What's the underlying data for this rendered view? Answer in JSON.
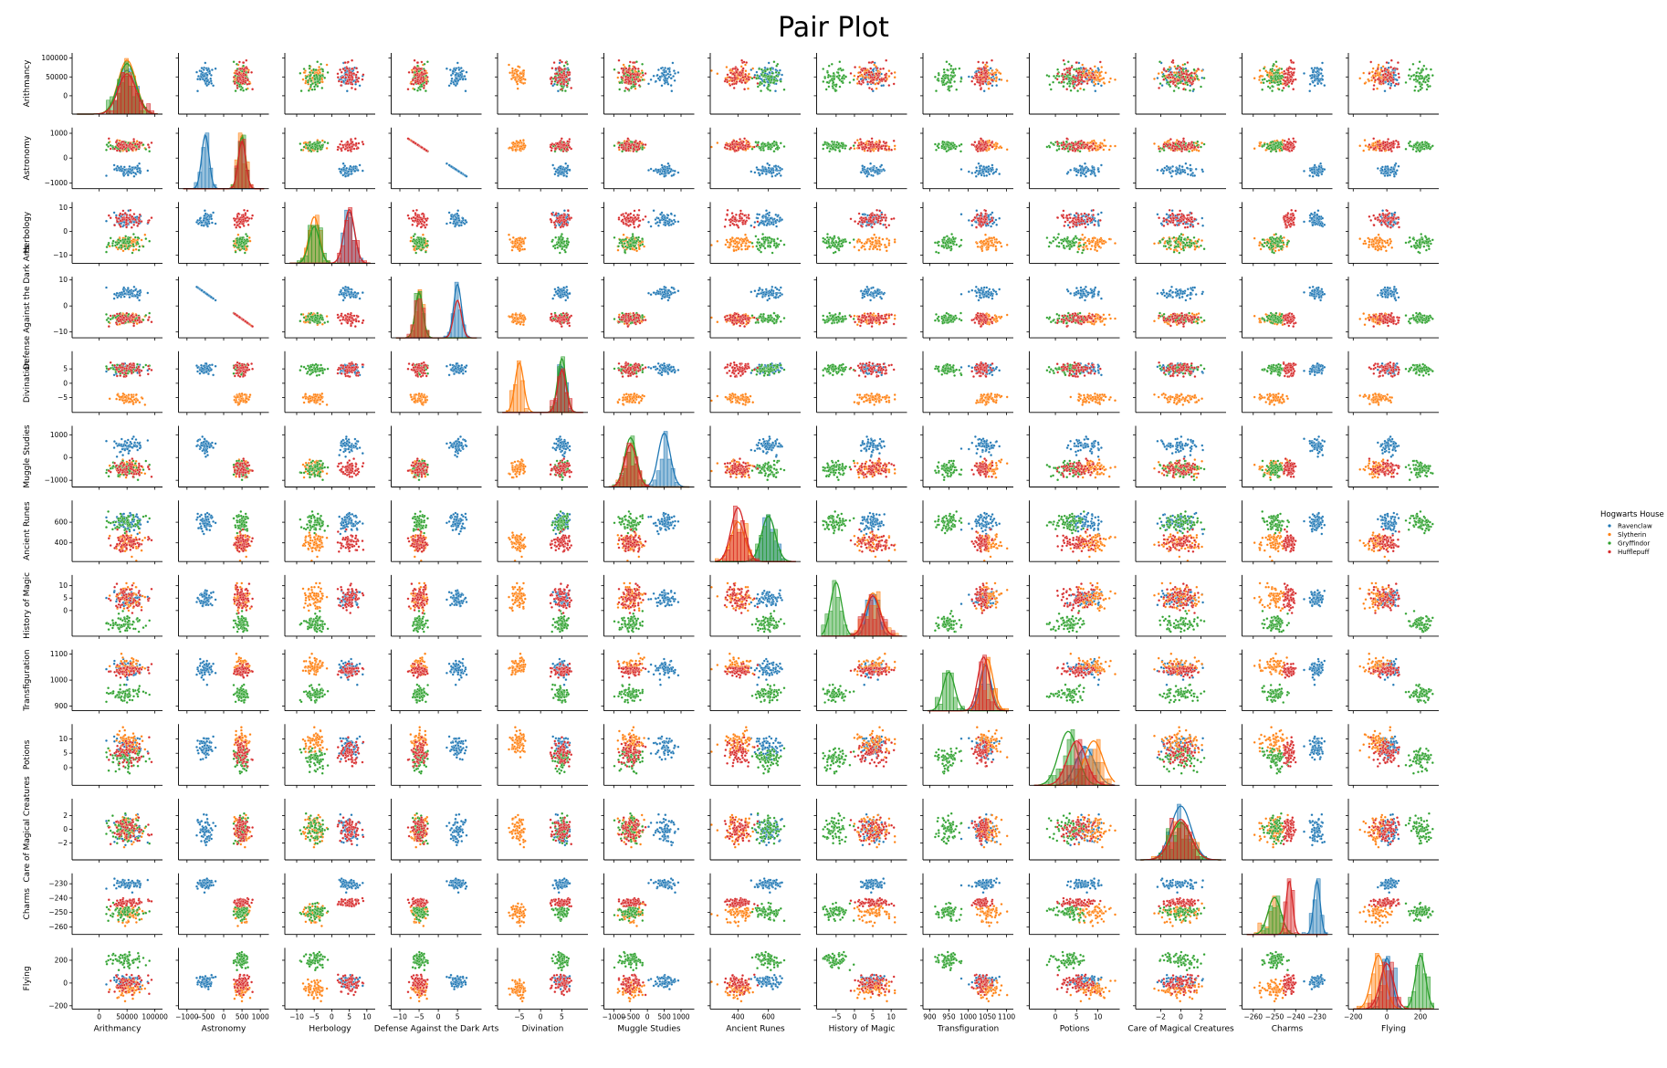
{
  "chart_data": {
    "type": "scatter",
    "title": "Pair Plot",
    "hue_title": "Hogwarts House",
    "diagonal": "histogram with kde",
    "grid": false,
    "legend_position": "right",
    "variables": [
      {
        "name": "Arithmancy",
        "range": [
          -40000,
          105000
        ],
        "ticks": [
          0,
          50000,
          100000
        ],
        "x_tick_labels": [
          "0",
          "50000",
          "100000"
        ],
        "y_ticks": [
          0,
          50000,
          100000
        ],
        "y_tick_labels": [
          "0",
          "50000",
          "100000"
        ]
      },
      {
        "name": "Astronomy",
        "range": [
          -1100,
          1100
        ],
        "ticks": [
          -1000,
          -500,
          0,
          500,
          1000
        ],
        "x_tick_labels": [
          "−1000",
          "−500",
          "0",
          "500",
          "1000"
        ],
        "y_ticks": [
          -1000,
          0,
          1000
        ],
        "y_tick_labels": [
          "−1000",
          "0",
          "1000"
        ]
      },
      {
        "name": "Herbology",
        "range": [
          -12,
          11
        ],
        "ticks": [
          -10,
          -5,
          0,
          5,
          10
        ],
        "x_tick_labels": [
          "−10",
          "−5",
          "0",
          "5",
          "10"
        ],
        "y_ticks": [
          -10,
          0,
          10
        ],
        "y_tick_labels": [
          "−10",
          "0",
          "10"
        ]
      },
      {
        "name": "Defense Against the Dark Arts",
        "range": [
          -11,
          10
        ],
        "ticks": [
          -10,
          -5,
          0,
          5
        ],
        "x_tick_labels": [
          "−10",
          "−5",
          "0",
          "5"
        ],
        "y_ticks": [
          -10,
          0,
          10
        ],
        "y_tick_labels": [
          "−10",
          "0",
          "10"
        ]
      },
      {
        "name": "Divination",
        "range": [
          -9,
          10
        ],
        "ticks": [
          -5,
          0,
          5
        ],
        "x_tick_labels": [
          "−5",
          "0",
          "5"
        ],
        "y_ticks": [
          -5,
          0,
          5
        ],
        "y_tick_labels": [
          "−5",
          "0",
          "5"
        ]
      },
      {
        "name": "Muggle Studies",
        "range": [
          -1150,
          1250
        ],
        "ticks": [
          -1000,
          -500,
          0,
          500,
          1000
        ],
        "x_tick_labels": [
          "−1000",
          "−500",
          "0",
          "500",
          "1000"
        ],
        "y_ticks": [
          -1000,
          0,
          1000
        ],
        "y_tick_labels": [
          "−1000",
          "0",
          "1000"
        ]
      },
      {
        "name": "Ancient Runes",
        "range": [
          250,
          780
        ],
        "ticks": [
          400,
          600
        ],
        "x_tick_labels": [
          "400",
          "600"
        ],
        "y_ticks": [
          400,
          600
        ],
        "y_tick_labels": [
          "400",
          "600"
        ]
      },
      {
        "name": "History of Magic",
        "range": [
          -9,
          13
        ],
        "ticks": [
          -5,
          0,
          5,
          10
        ],
        "x_tick_labels": [
          "−5",
          "0",
          "5",
          "10"
        ],
        "y_ticks": [
          0,
          5,
          10
        ],
        "y_tick_labels": [
          "0",
          "5",
          "10"
        ]
      },
      {
        "name": "Transfiguration",
        "range": [
          895,
          1105
        ],
        "ticks": [
          900,
          950,
          1000,
          1050,
          1100
        ],
        "x_tick_labels": [
          "900",
          "950",
          "1000",
          "1050",
          "1100"
        ],
        "y_ticks": [
          900,
          1000,
          1100
        ],
        "y_tick_labels": [
          "900",
          "1000",
          "1100"
        ]
      },
      {
        "name": "Potions",
        "range": [
          -5,
          14
        ],
        "ticks": [
          0,
          5,
          10
        ],
        "x_tick_labels": [
          "0",
          "5",
          "10"
        ],
        "y_ticks": [
          0,
          5,
          10
        ],
        "y_tick_labels": [
          "0",
          "5",
          "10"
        ]
      },
      {
        "name": "Care of Magical Creatures",
        "range": [
          -4,
          4
        ],
        "ticks": [
          -2,
          0,
          2
        ],
        "x_tick_labels": [
          "−2",
          "0",
          "2"
        ],
        "y_ticks": [
          -2,
          0,
          2
        ],
        "y_tick_labels": [
          "−2",
          "0",
          "2"
        ]
      },
      {
        "name": "Charms",
        "range": [
          -263,
          -225
        ],
        "ticks": [
          -260,
          -250,
          -240,
          -230
        ],
        "x_tick_labels": [
          "−260",
          "−250",
          "−240",
          "−230"
        ],
        "y_ticks": [
          -260,
          -250,
          -240,
          -230
        ],
        "y_tick_labels": [
          "−260",
          "−250",
          "−240",
          "−230"
        ]
      },
      {
        "name": "Flying",
        "range": [
          -200,
          280
        ],
        "ticks": [
          -200,
          0,
          200
        ],
        "x_tick_labels": [
          "−200",
          "0",
          "200"
        ],
        "y_ticks": [
          -200,
          0,
          200
        ],
        "y_tick_labels": [
          "−200",
          "0",
          "200"
        ]
      }
    ],
    "series": [
      {
        "name": "Ravenclaw",
        "color": "#1f77b4",
        "means": [
          50000,
          -500,
          5,
          5,
          5,
          500,
          600,
          5,
          1045,
          7,
          0,
          -230,
          0
        ],
        "sds": [
          16000,
          100,
          1.5,
          1,
          1,
          180,
          45,
          1.5,
          15,
          2.2,
          1,
          1.5,
          30
        ]
      },
      {
        "name": "Slytherin",
        "color": "#ff7f0e",
        "means": [
          50000,
          500,
          -5,
          -5,
          -5,
          -500,
          400,
          5,
          1050,
          9,
          0,
          -250,
          -50
        ],
        "sds": [
          16000,
          100,
          1.5,
          1,
          1,
          180,
          45,
          2,
          15,
          2.2,
          1,
          3,
          40
        ]
      },
      {
        "name": "Gryffindor",
        "color": "#2ca02c",
        "means": [
          50000,
          500,
          -5,
          -5,
          5,
          -500,
          600,
          -5,
          950,
          3,
          0,
          -250,
          200
        ],
        "sds": [
          16000,
          100,
          1.5,
          1,
          1,
          180,
          45,
          1.5,
          15,
          2.2,
          1,
          3,
          30
        ]
      },
      {
        "name": "Hufflepuff",
        "color": "#d62728",
        "means": [
          50000,
          500,
          5,
          5,
          5,
          -500,
          400,
          5,
          1040,
          5,
          0,
          -243,
          0
        ],
        "sds": [
          16000,
          100,
          1.5,
          1,
          1,
          180,
          45,
          2,
          15,
          2.2,
          1,
          1.5,
          40
        ]
      }
    ]
  }
}
